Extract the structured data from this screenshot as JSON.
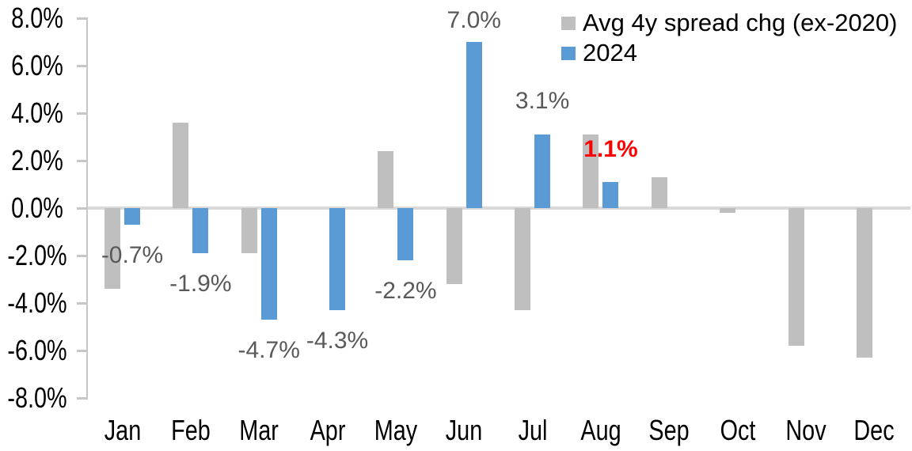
{
  "chart_data": {
    "type": "bar",
    "title": "",
    "categories": [
      "Jan",
      "Feb",
      "Mar",
      "Apr",
      "May",
      "Jun",
      "Jul",
      "Aug",
      "Sep",
      "Oct",
      "Nov",
      "Dec"
    ],
    "series": [
      {
        "name": "Avg 4y spread chg (ex-2020)",
        "color": "#BFBFBF",
        "values": [
          -3.4,
          3.6,
          -1.9,
          0.0,
          2.4,
          -3.2,
          -4.3,
          3.1,
          1.3,
          -0.2,
          -5.8,
          -6.3
        ]
      },
      {
        "name": "2024",
        "color": "#5B9BD5",
        "values": [
          -0.7,
          -1.9,
          -4.7,
          -4.3,
          -2.2,
          7.0,
          3.1,
          1.1,
          null,
          null,
          null,
          null
        ]
      }
    ],
    "data_labels": [
      {
        "text": "-0.7%",
        "color": "#595959",
        "bold": false
      },
      {
        "text": "-1.9%",
        "color": "#595959",
        "bold": false
      },
      {
        "text": "-4.7%",
        "color": "#595959",
        "bold": false
      },
      {
        "text": "-4.3%",
        "color": "#595959",
        "bold": false
      },
      {
        "text": "-2.2%",
        "color": "#595959",
        "bold": false
      },
      {
        "text": "7.0%",
        "color": "#595959",
        "bold": false
      },
      {
        "text": "3.1%",
        "color": "#595959",
        "bold": false
      },
      {
        "text": "1.1%",
        "color": "#FF0000",
        "bold": true
      },
      null,
      null,
      null,
      null
    ],
    "ylim": [
      -8,
      8
    ],
    "y_tick_step": 2,
    "grid": "zero-line-only",
    "legend_position": "top-right"
  },
  "y_axis": {
    "tick_labels": [
      "8.0%",
      "6.0%",
      "4.0%",
      "2.0%",
      "0.0%",
      "-2.0%",
      "-4.0%",
      "-6.0%",
      "-8.0%"
    ]
  },
  "legend": {
    "items": [
      {
        "label": "Avg 4y spread chg (ex-2020)",
        "color": "#BFBFBF"
      },
      {
        "label": "2024",
        "color": "#5B9BD5"
      }
    ]
  },
  "colors": {
    "axis": "#C6C6C6",
    "zero_line": "#D9D9D9",
    "data_label": "#595959",
    "highlight": "#FF0000",
    "background": "#FFFFFF"
  }
}
